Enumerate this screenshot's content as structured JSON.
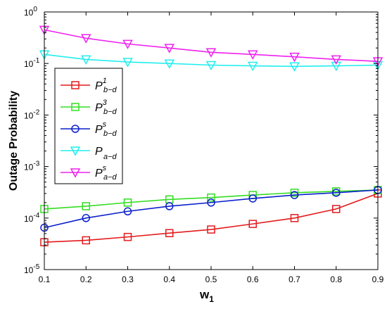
{
  "chart_data": {
    "type": "line",
    "xlabel": "w",
    "xlabel_sub": "1",
    "ylabel": "Outage Probability",
    "x": [
      0.1,
      0.2,
      0.3,
      0.4,
      0.5,
      0.6,
      0.7,
      0.8,
      0.9
    ],
    "xlim": [
      0.1,
      0.9
    ],
    "ylim": [
      1e-05,
      1
    ],
    "yscale": "log",
    "grid": false,
    "legend_position": "left",
    "x_ticks": [
      "0.1",
      "0.2",
      "0.3",
      "0.4",
      "0.5",
      "0.6",
      "0.7",
      "0.8",
      "0.9"
    ],
    "y_ticks": [
      {
        "value": 1e-05,
        "base": "10",
        "exp": "-5"
      },
      {
        "value": 0.0001,
        "base": "10",
        "exp": "-4"
      },
      {
        "value": 0.001,
        "base": "10",
        "exp": "-3"
      },
      {
        "value": 0.01,
        "base": "10",
        "exp": "-2"
      },
      {
        "value": 0.1,
        "base": "10",
        "exp": "-1"
      },
      {
        "value": 1,
        "base": "10",
        "exp": "0"
      }
    ],
    "series": [
      {
        "name": "P_b-d^1",
        "name_main": "P",
        "name_sup": "1",
        "name_sub": "b−d",
        "color": "#e31a1c",
        "marker": "square",
        "values": [
          3.4e-05,
          3.7e-05,
          4.3e-05,
          5.1e-05,
          6e-05,
          7.7e-05,
          0.0001,
          0.00015,
          0.0003
        ]
      },
      {
        "name": "P_b-d^3",
        "name_main": "P",
        "name_sup": "3",
        "name_sub": "b−d",
        "color": "#33dd22",
        "marker": "square",
        "values": [
          0.00015,
          0.00017,
          0.0002,
          0.00023,
          0.00025,
          0.00028,
          0.00031,
          0.00033,
          0.00035
        ]
      },
      {
        "name": "P_b-d^s",
        "name_main": "P",
        "name_sup": "s",
        "name_sub": "b−d",
        "color": "#0a1fcc",
        "marker": "circle",
        "values": [
          6.5e-05,
          0.0001,
          0.000135,
          0.00017,
          0.0002,
          0.00024,
          0.00028,
          0.00031,
          0.00035
        ]
      },
      {
        "name": "P_a-d",
        "name_main": "P",
        "name_sup": "",
        "name_sub": "a−d",
        "color": "#22eeee",
        "marker": "triangle-down",
        "values": [
          0.15,
          0.12,
          0.107,
          0.1,
          0.093,
          0.09,
          0.088,
          0.09,
          0.093
        ]
      },
      {
        "name": "P_a-d^s",
        "name_main": "P",
        "name_sup": "s",
        "name_sub": "a−d",
        "color": "#ee22ee",
        "marker": "triangle-down",
        "values": [
          0.45,
          0.31,
          0.24,
          0.2,
          0.165,
          0.15,
          0.135,
          0.12,
          0.11
        ]
      }
    ]
  }
}
